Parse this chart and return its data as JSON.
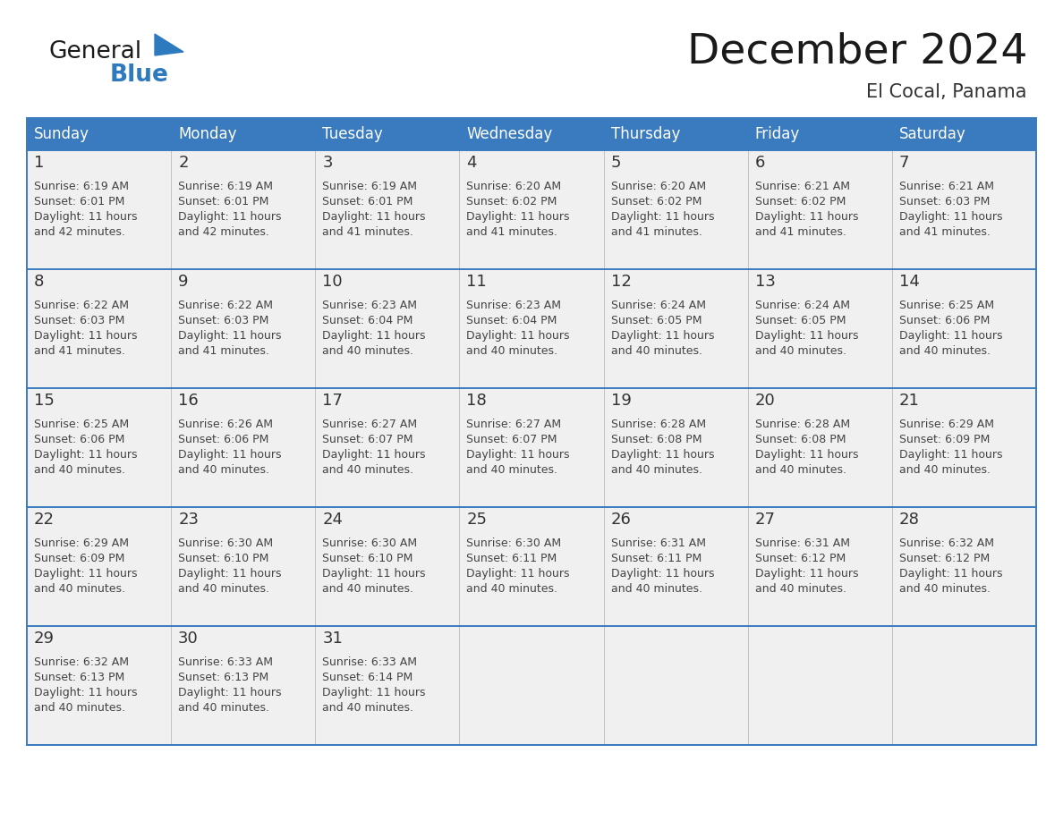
{
  "title": "December 2024",
  "subtitle": "El Cocal, Panama",
  "days_of_week": [
    "Sunday",
    "Monday",
    "Tuesday",
    "Wednesday",
    "Thursday",
    "Friday",
    "Saturday"
  ],
  "header_bg": "#3a7abf",
  "header_text": "#ffffff",
  "cell_bg_light": "#f0f0f0",
  "day_num_color": "#333333",
  "cell_text_color": "#444444",
  "grid_line_color": "#3a7abf",
  "title_color": "#1a1a1a",
  "subtitle_color": "#333333",
  "logo_general_color": "#1a1a1a",
  "logo_blue_color": "#2e7abf",
  "weeks": [
    [
      {
        "day": 1,
        "sunrise": "6:19 AM",
        "sunset": "6:01 PM",
        "daylight_h": "11 hours",
        "daylight_m": "and 42 minutes."
      },
      {
        "day": 2,
        "sunrise": "6:19 AM",
        "sunset": "6:01 PM",
        "daylight_h": "11 hours",
        "daylight_m": "and 42 minutes."
      },
      {
        "day": 3,
        "sunrise": "6:19 AM",
        "sunset": "6:01 PM",
        "daylight_h": "11 hours",
        "daylight_m": "and 41 minutes."
      },
      {
        "day": 4,
        "sunrise": "6:20 AM",
        "sunset": "6:02 PM",
        "daylight_h": "11 hours",
        "daylight_m": "and 41 minutes."
      },
      {
        "day": 5,
        "sunrise": "6:20 AM",
        "sunset": "6:02 PM",
        "daylight_h": "11 hours",
        "daylight_m": "and 41 minutes."
      },
      {
        "day": 6,
        "sunrise": "6:21 AM",
        "sunset": "6:02 PM",
        "daylight_h": "11 hours",
        "daylight_m": "and 41 minutes."
      },
      {
        "day": 7,
        "sunrise": "6:21 AM",
        "sunset": "6:03 PM",
        "daylight_h": "11 hours",
        "daylight_m": "and 41 minutes."
      }
    ],
    [
      {
        "day": 8,
        "sunrise": "6:22 AM",
        "sunset": "6:03 PM",
        "daylight_h": "11 hours",
        "daylight_m": "and 41 minutes."
      },
      {
        "day": 9,
        "sunrise": "6:22 AM",
        "sunset": "6:03 PM",
        "daylight_h": "11 hours",
        "daylight_m": "and 41 minutes."
      },
      {
        "day": 10,
        "sunrise": "6:23 AM",
        "sunset": "6:04 PM",
        "daylight_h": "11 hours",
        "daylight_m": "and 40 minutes."
      },
      {
        "day": 11,
        "sunrise": "6:23 AM",
        "sunset": "6:04 PM",
        "daylight_h": "11 hours",
        "daylight_m": "and 40 minutes."
      },
      {
        "day": 12,
        "sunrise": "6:24 AM",
        "sunset": "6:05 PM",
        "daylight_h": "11 hours",
        "daylight_m": "and 40 minutes."
      },
      {
        "day": 13,
        "sunrise": "6:24 AM",
        "sunset": "6:05 PM",
        "daylight_h": "11 hours",
        "daylight_m": "and 40 minutes."
      },
      {
        "day": 14,
        "sunrise": "6:25 AM",
        "sunset": "6:06 PM",
        "daylight_h": "11 hours",
        "daylight_m": "and 40 minutes."
      }
    ],
    [
      {
        "day": 15,
        "sunrise": "6:25 AM",
        "sunset": "6:06 PM",
        "daylight_h": "11 hours",
        "daylight_m": "and 40 minutes."
      },
      {
        "day": 16,
        "sunrise": "6:26 AM",
        "sunset": "6:06 PM",
        "daylight_h": "11 hours",
        "daylight_m": "and 40 minutes."
      },
      {
        "day": 17,
        "sunrise": "6:27 AM",
        "sunset": "6:07 PM",
        "daylight_h": "11 hours",
        "daylight_m": "and 40 minutes."
      },
      {
        "day": 18,
        "sunrise": "6:27 AM",
        "sunset": "6:07 PM",
        "daylight_h": "11 hours",
        "daylight_m": "and 40 minutes."
      },
      {
        "day": 19,
        "sunrise": "6:28 AM",
        "sunset": "6:08 PM",
        "daylight_h": "11 hours",
        "daylight_m": "and 40 minutes."
      },
      {
        "day": 20,
        "sunrise": "6:28 AM",
        "sunset": "6:08 PM",
        "daylight_h": "11 hours",
        "daylight_m": "and 40 minutes."
      },
      {
        "day": 21,
        "sunrise": "6:29 AM",
        "sunset": "6:09 PM",
        "daylight_h": "11 hours",
        "daylight_m": "and 40 minutes."
      }
    ],
    [
      {
        "day": 22,
        "sunrise": "6:29 AM",
        "sunset": "6:09 PM",
        "daylight_h": "11 hours",
        "daylight_m": "and 40 minutes."
      },
      {
        "day": 23,
        "sunrise": "6:30 AM",
        "sunset": "6:10 PM",
        "daylight_h": "11 hours",
        "daylight_m": "and 40 minutes."
      },
      {
        "day": 24,
        "sunrise": "6:30 AM",
        "sunset": "6:10 PM",
        "daylight_h": "11 hours",
        "daylight_m": "and 40 minutes."
      },
      {
        "day": 25,
        "sunrise": "6:30 AM",
        "sunset": "6:11 PM",
        "daylight_h": "11 hours",
        "daylight_m": "and 40 minutes."
      },
      {
        "day": 26,
        "sunrise": "6:31 AM",
        "sunset": "6:11 PM",
        "daylight_h": "11 hours",
        "daylight_m": "and 40 minutes."
      },
      {
        "day": 27,
        "sunrise": "6:31 AM",
        "sunset": "6:12 PM",
        "daylight_h": "11 hours",
        "daylight_m": "and 40 minutes."
      },
      {
        "day": 28,
        "sunrise": "6:32 AM",
        "sunset": "6:12 PM",
        "daylight_h": "11 hours",
        "daylight_m": "and 40 minutes."
      }
    ],
    [
      {
        "day": 29,
        "sunrise": "6:32 AM",
        "sunset": "6:13 PM",
        "daylight_h": "11 hours",
        "daylight_m": "and 40 minutes."
      },
      {
        "day": 30,
        "sunrise": "6:33 AM",
        "sunset": "6:13 PM",
        "daylight_h": "11 hours",
        "daylight_m": "and 40 minutes."
      },
      {
        "day": 31,
        "sunrise": "6:33 AM",
        "sunset": "6:14 PM",
        "daylight_h": "11 hours",
        "daylight_m": "and 40 minutes."
      },
      null,
      null,
      null,
      null
    ]
  ]
}
